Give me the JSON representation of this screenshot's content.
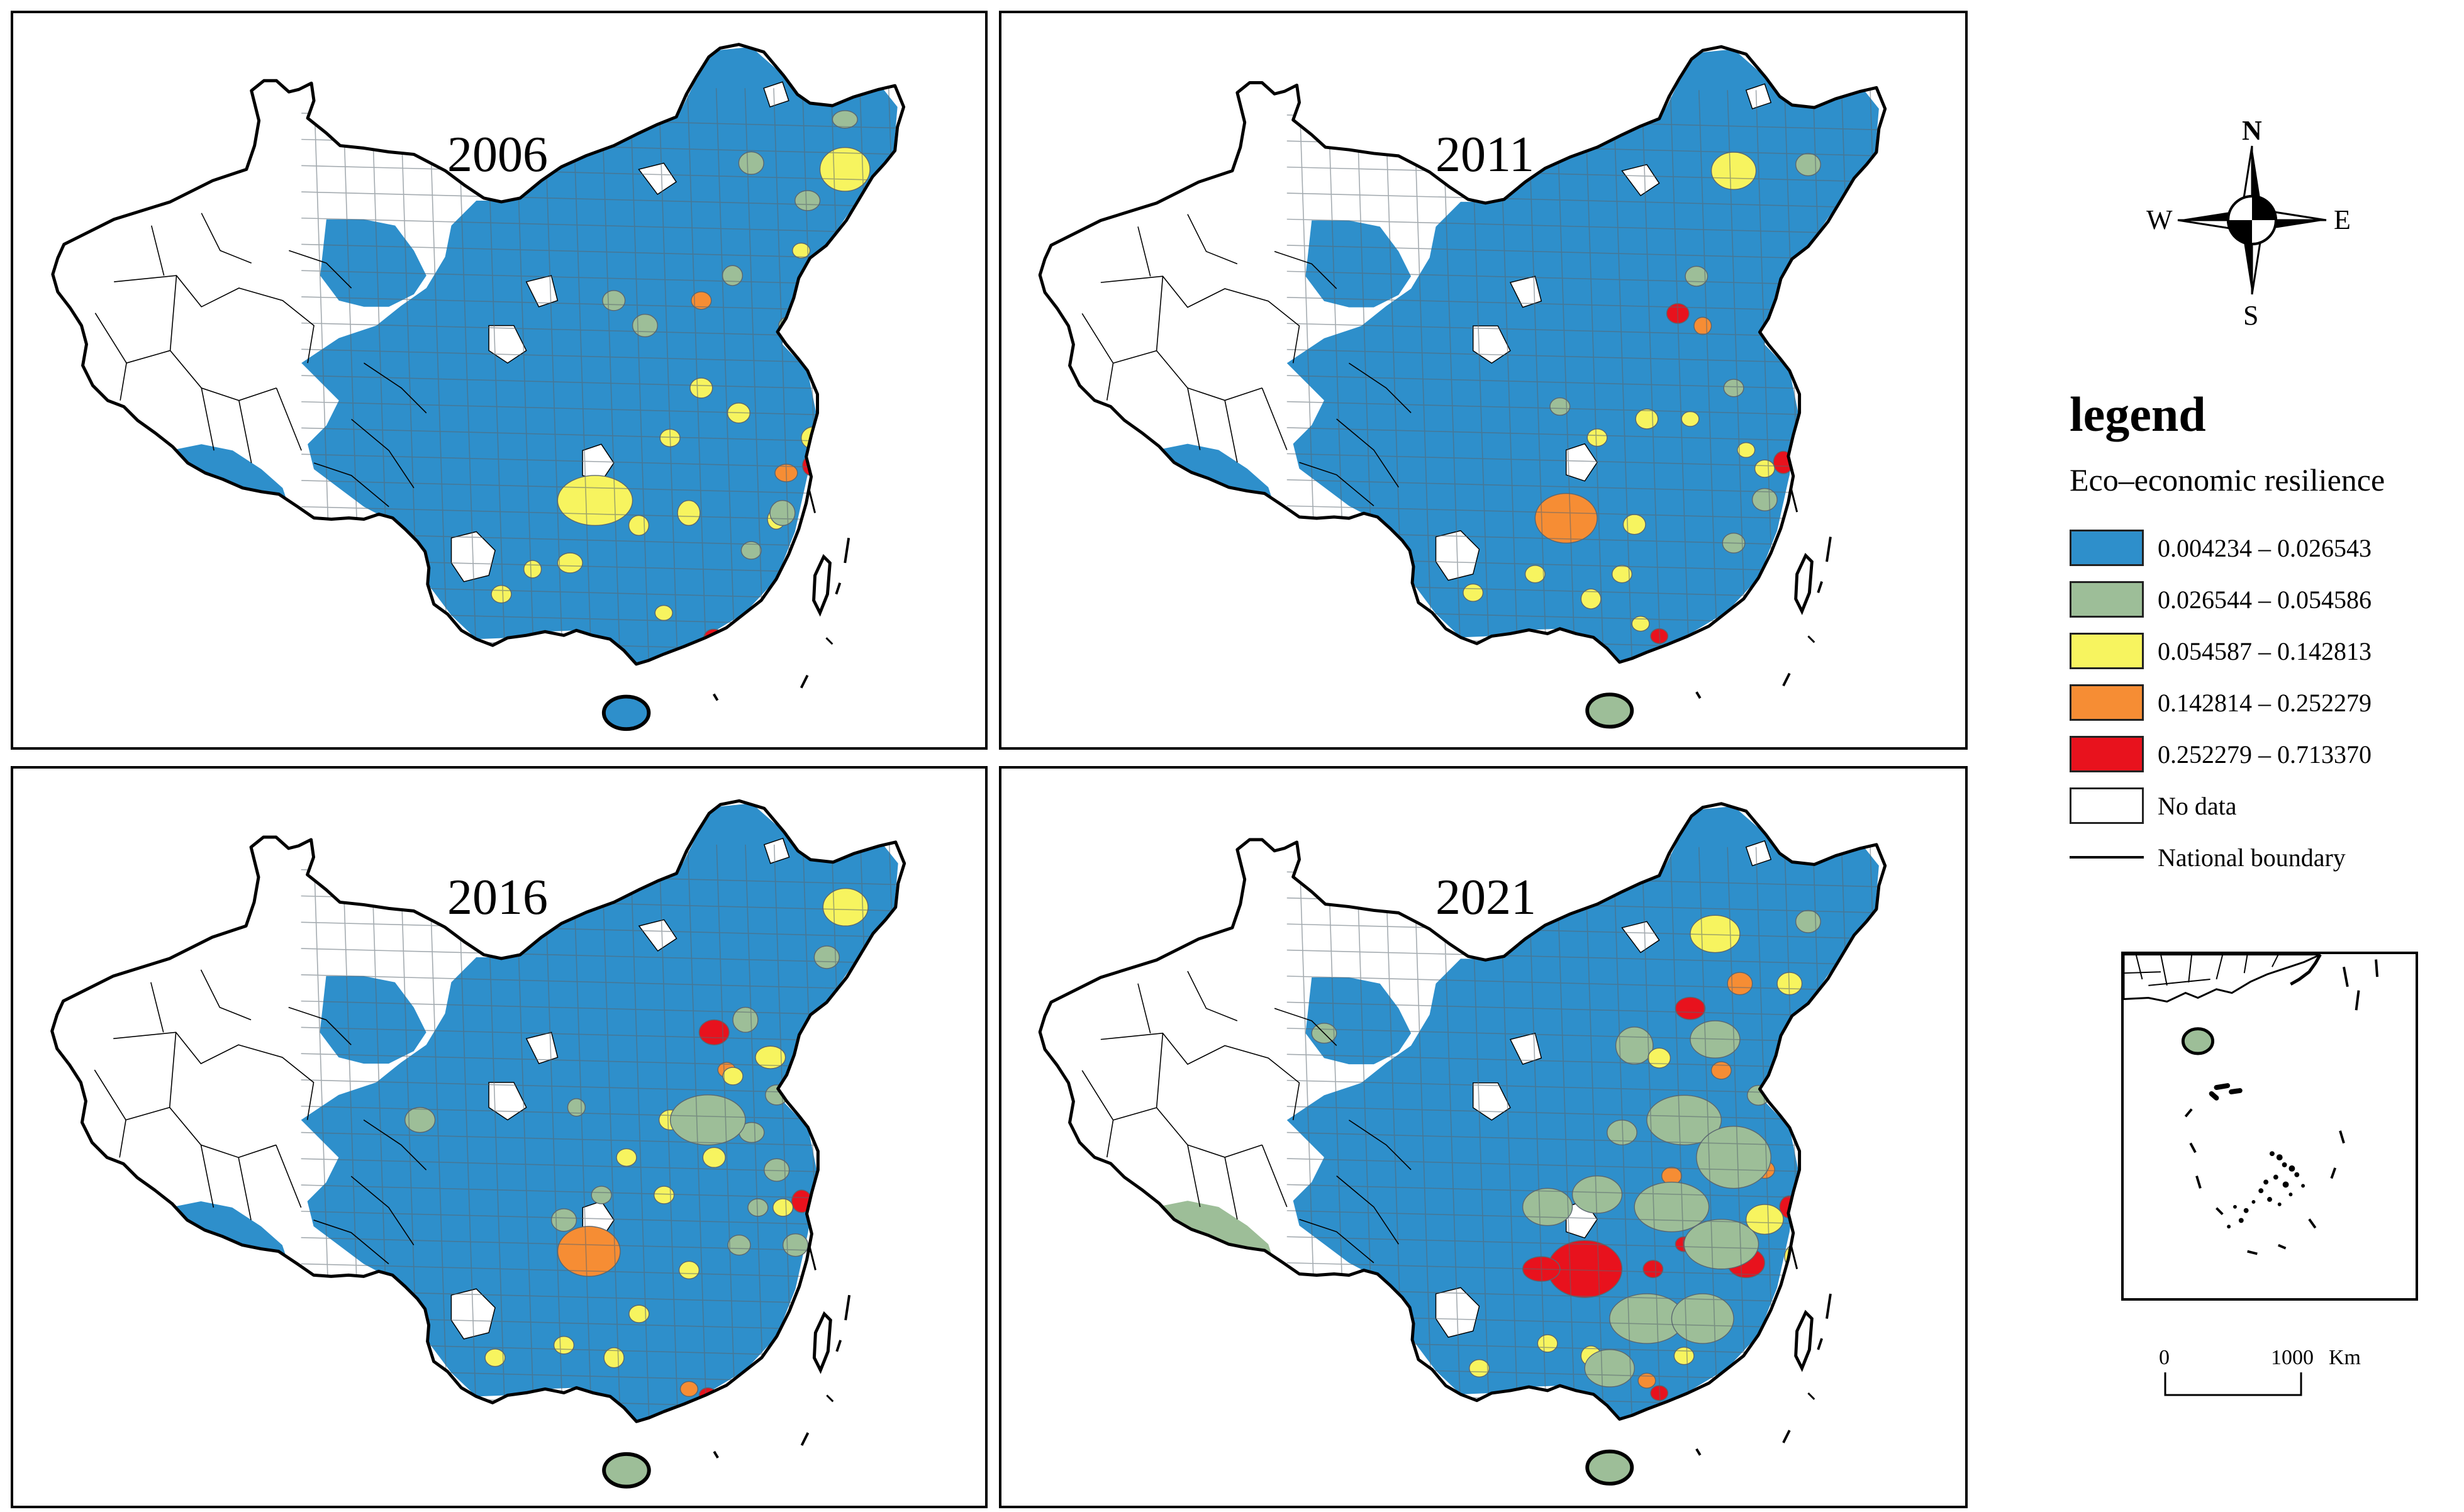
{
  "panels": [
    {
      "year": "2006"
    },
    {
      "year": "2011"
    },
    {
      "year": "2016"
    },
    {
      "year": "2021"
    }
  ],
  "compass": {
    "n": "N",
    "s": "S",
    "e": "E",
    "w": "W"
  },
  "legend": {
    "title": "legend",
    "subtitle": "Eco–economic resilience",
    "classes": [
      {
        "label": "0.004234 – 0.026543",
        "color": "#2e8fcb"
      },
      {
        "label": "0.026544 – 0.054586",
        "color": "#9dbe98"
      },
      {
        "label": "0.054587 – 0.142813",
        "color": "#f7f45f"
      },
      {
        "label": "0.142814 – 0.252279",
        "color": "#f68d34"
      },
      {
        "label": "0.252279 – 0.713370",
        "color": "#e8121d"
      }
    ],
    "no_data": {
      "label": "No data",
      "color": "#ffffff"
    },
    "boundary": {
      "label": "National boundary"
    }
  },
  "scale": {
    "start": "0",
    "end": "1000",
    "unit": "Km"
  }
}
